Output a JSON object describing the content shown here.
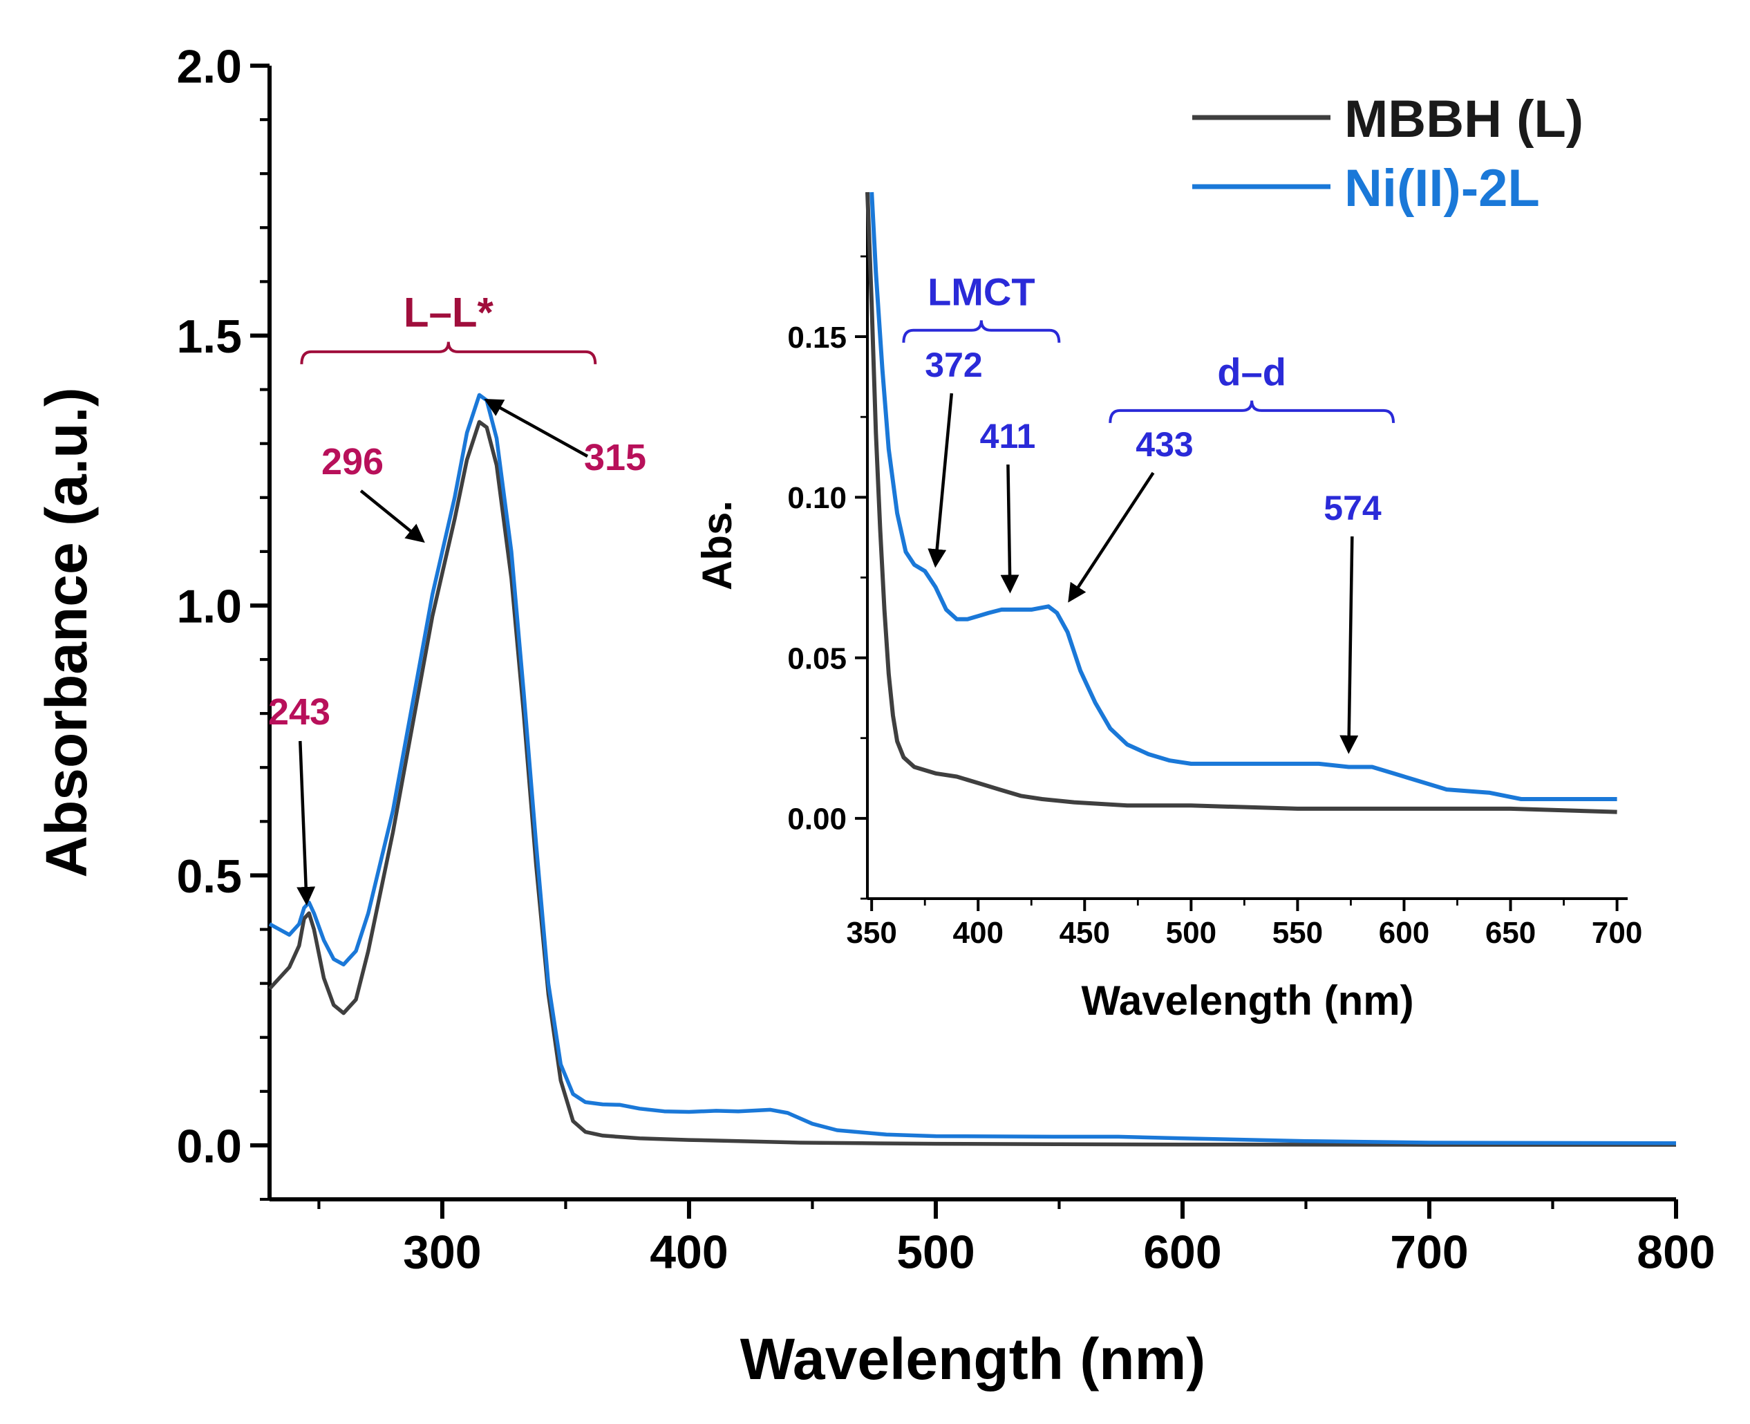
{
  "chart_data": [
    {
      "id": "main",
      "type": "line",
      "title": "",
      "xlabel": "Wavelength (nm)",
      "ylabel": "Absorbance (a.u.)",
      "xlim": [
        230,
        800
      ],
      "ylim": [
        -0.1,
        2.0
      ],
      "x_ticks": [
        300,
        400,
        500,
        600,
        700,
        800
      ],
      "y_ticks": [
        0.0,
        0.5,
        1.0,
        1.5,
        2.0
      ],
      "x_tick_labels": [
        "300",
        "400",
        "500",
        "600",
        "700",
        "800"
      ],
      "y_tick_labels": [
        "0.0",
        "0.5",
        "1.0",
        "1.5",
        "2.0"
      ],
      "legend": {
        "placement": "top-right",
        "entries": [
          "MBBH (L)",
          "Ni(II)-2L"
        ]
      },
      "series": [
        {
          "name": "MBBH (L)",
          "color": "#3f3f3f",
          "points": [
            [
              230,
              0.29
            ],
            [
              234,
              0.31
            ],
            [
              238,
              0.33
            ],
            [
              242,
              0.37
            ],
            [
              244,
              0.42
            ],
            [
              246,
              0.43
            ],
            [
              248,
              0.4
            ],
            [
              252,
              0.31
            ],
            [
              256,
              0.26
            ],
            [
              260,
              0.245
            ],
            [
              265,
              0.27
            ],
            [
              270,
              0.36
            ],
            [
              280,
              0.58
            ],
            [
              290,
              0.83
            ],
            [
              296,
              0.98
            ],
            [
              300,
              1.06
            ],
            [
              305,
              1.16
            ],
            [
              310,
              1.27
            ],
            [
              315,
              1.34
            ],
            [
              318,
              1.33
            ],
            [
              322,
              1.26
            ],
            [
              328,
              1.05
            ],
            [
              333,
              0.8
            ],
            [
              338,
              0.52
            ],
            [
              343,
              0.28
            ],
            [
              348,
              0.12
            ],
            [
              353,
              0.045
            ],
            [
              358,
              0.025
            ],
            [
              365,
              0.018
            ],
            [
              380,
              0.013
            ],
            [
              400,
              0.01
            ],
            [
              420,
              0.008
            ],
            [
              445,
              0.005
            ],
            [
              470,
              0.004
            ],
            [
              500,
              0.003
            ],
            [
              550,
              0.002
            ],
            [
              600,
              0.0015
            ],
            [
              700,
              0.001
            ],
            [
              800,
              0.001
            ]
          ]
        },
        {
          "name": "Ni(II)-2L",
          "color": "#1a78d8",
          "points": [
            [
              230,
              0.41
            ],
            [
              234,
              0.4
            ],
            [
              238,
              0.39
            ],
            [
              242,
              0.41
            ],
            [
              244,
              0.44
            ],
            [
              246,
              0.45
            ],
            [
              248,
              0.43
            ],
            [
              252,
              0.38
            ],
            [
              256,
              0.345
            ],
            [
              260,
              0.335
            ],
            [
              265,
              0.36
            ],
            [
              270,
              0.43
            ],
            [
              280,
              0.62
            ],
            [
              290,
              0.87
            ],
            [
              296,
              1.02
            ],
            [
              300,
              1.1
            ],
            [
              305,
              1.2
            ],
            [
              310,
              1.32
            ],
            [
              315,
              1.39
            ],
            [
              318,
              1.38
            ],
            [
              322,
              1.31
            ],
            [
              328,
              1.1
            ],
            [
              333,
              0.84
            ],
            [
              338,
              0.56
            ],
            [
              343,
              0.3
            ],
            [
              348,
              0.15
            ],
            [
              353,
              0.095
            ],
            [
              358,
              0.08
            ],
            [
              365,
              0.076
            ],
            [
              372,
              0.075
            ],
            [
              380,
              0.068
            ],
            [
              390,
              0.063
            ],
            [
              400,
              0.062
            ],
            [
              411,
              0.064
            ],
            [
              420,
              0.063
            ],
            [
              433,
              0.066
            ],
            [
              440,
              0.06
            ],
            [
              450,
              0.04
            ],
            [
              460,
              0.028
            ],
            [
              480,
              0.02
            ],
            [
              500,
              0.017
            ],
            [
              550,
              0.016
            ],
            [
              574,
              0.016
            ],
            [
              600,
              0.013
            ],
            [
              650,
              0.008
            ],
            [
              700,
              0.005
            ],
            [
              800,
              0.004
            ]
          ]
        }
      ],
      "annotations": [
        {
          "label": "L–L*",
          "color": "#a00e3c",
          "bracket_range": [
            243,
            362
          ],
          "bracket_level": 1.47
        },
        {
          "label": "243",
          "color": "#b8105a",
          "target": [
            245,
            0.45
          ]
        },
        {
          "label": "296",
          "color": "#b8105a",
          "target": [
            292,
            1.12
          ]
        },
        {
          "label": "315",
          "color": "#b8105a",
          "target": [
            318,
            1.38
          ]
        }
      ]
    },
    {
      "id": "inset",
      "type": "line",
      "title": "",
      "xlabel": "Wavelength (nm)",
      "ylabel": "Abs.",
      "xlim": [
        348,
        705
      ],
      "ylim": [
        -0.025,
        0.195
      ],
      "x_ticks": [
        350,
        400,
        450,
        500,
        550,
        600,
        650,
        700
      ],
      "y_ticks": [
        0.0,
        0.05,
        0.1,
        0.15
      ],
      "x_tick_labels": [
        "350",
        "400",
        "450",
        "500",
        "550",
        "600",
        "650",
        "700"
      ],
      "y_tick_labels": [
        "0.00",
        "0.05",
        "0.10",
        "0.15"
      ],
      "series": [
        {
          "name": "MBBH (L)",
          "color": "#3f3f3f",
          "points": [
            [
              348,
              0.195
            ],
            [
              350,
              0.16
            ],
            [
              352,
              0.12
            ],
            [
              354,
              0.09
            ],
            [
              356,
              0.065
            ],
            [
              358,
              0.045
            ],
            [
              360,
              0.032
            ],
            [
              362,
              0.024
            ],
            [
              365,
              0.019
            ],
            [
              370,
              0.016
            ],
            [
              380,
              0.014
            ],
            [
              390,
              0.013
            ],
            [
              400,
              0.011
            ],
            [
              410,
              0.009
            ],
            [
              420,
              0.007
            ],
            [
              430,
              0.006
            ],
            [
              445,
              0.005
            ],
            [
              470,
              0.004
            ],
            [
              500,
              0.004
            ],
            [
              550,
              0.003
            ],
            [
              600,
              0.003
            ],
            [
              650,
              0.003
            ],
            [
              700,
              0.002
            ]
          ]
        },
        {
          "name": "Ni(II)-2L",
          "color": "#1a78d8",
          "points": [
            [
              350,
              0.195
            ],
            [
              352,
              0.17
            ],
            [
              355,
              0.14
            ],
            [
              358,
              0.115
            ],
            [
              362,
              0.095
            ],
            [
              366,
              0.083
            ],
            [
              370,
              0.079
            ],
            [
              375,
              0.077
            ],
            [
              380,
              0.072
            ],
            [
              385,
              0.065
            ],
            [
              390,
              0.062
            ],
            [
              395,
              0.062
            ],
            [
              400,
              0.063
            ],
            [
              405,
              0.064
            ],
            [
              411,
              0.065
            ],
            [
              418,
              0.065
            ],
            [
              425,
              0.065
            ],
            [
              433,
              0.066
            ],
            [
              437,
              0.064
            ],
            [
              442,
              0.058
            ],
            [
              448,
              0.046
            ],
            [
              455,
              0.036
            ],
            [
              462,
              0.028
            ],
            [
              470,
              0.023
            ],
            [
              480,
              0.02
            ],
            [
              490,
              0.018
            ],
            [
              500,
              0.017
            ],
            [
              520,
              0.017
            ],
            [
              540,
              0.017
            ],
            [
              560,
              0.017
            ],
            [
              574,
              0.016
            ],
            [
              585,
              0.016
            ],
            [
              595,
              0.014
            ],
            [
              605,
              0.012
            ],
            [
              620,
              0.009
            ],
            [
              640,
              0.008
            ],
            [
              655,
              0.006
            ],
            [
              680,
              0.006
            ],
            [
              700,
              0.006
            ]
          ]
        }
      ],
      "annotations": [
        {
          "label": "LMCT",
          "color": "#2a2ad8",
          "bracket_range": [
            365,
            438
          ],
          "bracket_level": 0.152
        },
        {
          "label": "d–d",
          "color": "#2a2ad8",
          "bracket_range": [
            462,
            595
          ],
          "bracket_level": 0.127
        },
        {
          "label": "372",
          "color": "#2a2ad8",
          "target": [
            380,
            0.079
          ]
        },
        {
          "label": "411",
          "color": "#2a2ad8",
          "target": [
            415,
            0.071
          ]
        },
        {
          "label": "433",
          "color": "#2a2ad8",
          "target": [
            443,
            0.068
          ]
        },
        {
          "label": "574",
          "color": "#2a2ad8",
          "target": [
            574,
            0.021
          ]
        }
      ]
    }
  ]
}
